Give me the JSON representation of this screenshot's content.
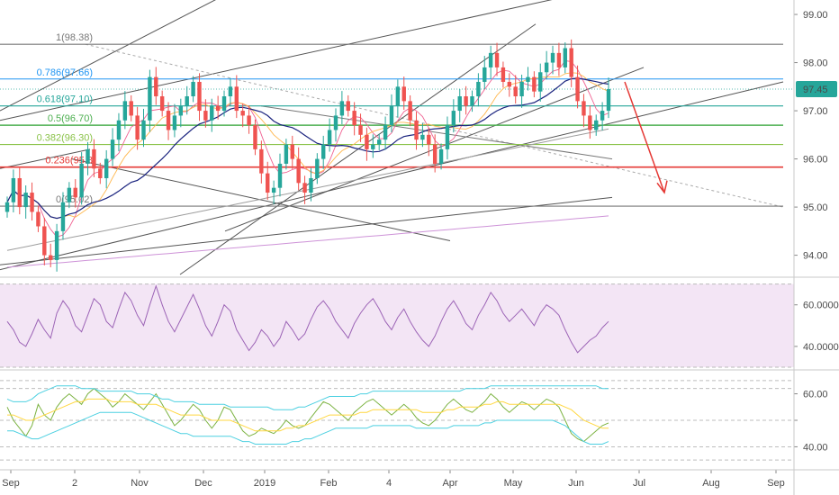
{
  "chart_data": [
    {
      "type": "candlestick",
      "panel": "price",
      "title": "",
      "y_ticks": [
        94.0,
        95.0,
        96.0,
        97.0,
        98.0,
        99.0
      ],
      "y_tick_labels": [
        "94.00",
        "95.00",
        "96.00",
        "97.00",
        "98.00",
        "99.00"
      ],
      "ylim": [
        93.6,
        99.3
      ],
      "x_ticks": [
        "Sep",
        "2",
        "Nov",
        "Dec",
        "2019",
        "Feb",
        "4",
        "Apr",
        "May",
        "Jun",
        "Jul",
        "Aug",
        "Sep"
      ],
      "last_price": 97.45,
      "last_price_label": "97.45",
      "fib_levels": [
        {
          "label": "1(98.38)",
          "ratio": 1,
          "value": 98.38,
          "color": "#787878"
        },
        {
          "label": "0.786(97.66)",
          "ratio": 0.786,
          "value": 97.66,
          "color": "#2196f3"
        },
        {
          "label": "0.618(97.10)",
          "ratio": 0.618,
          "value": 97.1,
          "color": "#26a69a"
        },
        {
          "label": "0.5(96.70)",
          "ratio": 0.5,
          "value": 96.7,
          "color": "#4caf50"
        },
        {
          "label": "0.382(96.30)",
          "ratio": 0.382,
          "value": 96.3,
          "color": "#8bc34a"
        },
        {
          "label": "0.236(95.8",
          "ratio": 0.236,
          "value": 95.83,
          "color": "#e53935"
        },
        {
          "label": "0(95.02)",
          "ratio": 0,
          "value": 95.02,
          "color": "#787878"
        }
      ],
      "ohlc_series_approx": [
        95.1,
        95.6,
        95.0,
        95.3,
        94.9,
        94.6,
        94.0,
        93.9,
        94.5,
        95.1,
        95.4,
        95.2,
        95.9,
        96.2,
        95.8,
        95.6,
        96.0,
        96.4,
        96.8,
        97.2,
        96.9,
        96.4,
        96.8,
        97.7,
        97.3,
        97.0,
        96.6,
        96.9,
        97.1,
        97.3,
        97.6,
        97.0,
        96.8,
        97.1,
        97.0,
        97.3,
        97.5,
        97.0,
        96.9,
        96.7,
        96.2,
        95.7,
        95.3,
        95.4,
        95.9,
        96.3,
        96.0,
        95.5,
        95.3,
        95.6,
        96.0,
        96.3,
        96.6,
        96.9,
        97.2,
        97.0,
        96.7,
        96.5,
        96.2,
        96.3,
        96.4,
        96.7,
        97.1,
        97.5,
        97.2,
        96.8,
        96.4,
        96.5,
        96.3,
        95.9,
        96.2,
        96.7,
        97.0,
        97.3,
        97.1,
        97.3,
        97.6,
        97.9,
        98.2,
        97.9,
        97.6,
        97.5,
        97.3,
        97.6,
        97.7,
        97.4,
        97.8,
        98.0,
        98.2,
        97.9,
        98.3,
        97.7,
        97.2,
        96.9,
        96.6,
        96.8,
        97.0,
        97.45
      ],
      "trend_arrow": "down",
      "trend_arrow_color": "#e53935"
    },
    {
      "type": "line",
      "panel": "RSI",
      "y_ticks": [
        40,
        60
      ],
      "y_tick_labels": [
        "40.0000",
        "60.0000"
      ],
      "ylim": [
        30,
        72
      ],
      "band": [
        30,
        70
      ],
      "series_color": "#9c64b6",
      "values_approx": [
        52,
        48,
        42,
        40,
        46,
        53,
        48,
        44,
        56,
        62,
        58,
        50,
        47,
        55,
        63,
        60,
        52,
        49,
        58,
        66,
        62,
        55,
        50,
        60,
        69,
        60,
        52,
        47,
        53,
        59,
        65,
        58,
        50,
        45,
        52,
        60,
        57,
        48,
        43,
        38,
        42,
        48,
        45,
        40,
        44,
        52,
        48,
        43,
        46,
        53,
        59,
        62,
        58,
        52,
        48,
        44,
        51,
        56,
        60,
        63,
        58,
        52,
        48,
        54,
        58,
        52,
        47,
        43,
        40,
        45,
        52,
        58,
        62,
        57,
        51,
        48,
        55,
        60,
        66,
        62,
        56,
        52,
        55,
        58,
        54,
        50,
        56,
        60,
        58,
        55,
        48,
        42,
        37,
        40,
        43,
        45,
        49,
        52
      ]
    },
    {
      "type": "line",
      "panel": "oscillator",
      "y_ticks": [
        40,
        50,
        60
      ],
      "y_tick_labels": [
        "40.00",
        "",
        "60.00"
      ],
      "ylim": [
        32,
        68
      ],
      "series": [
        {
          "color": "#7cb342",
          "role": "fast",
          "values_approx": [
            55,
            50,
            47,
            44,
            48,
            56,
            52,
            50,
            55,
            58,
            60,
            58,
            56,
            60,
            62,
            60,
            58,
            55,
            57,
            60,
            58,
            56,
            54,
            57,
            60,
            56,
            52,
            48,
            50,
            53,
            56,
            54,
            50,
            47,
            50,
            55,
            54,
            50,
            46,
            44,
            45,
            47,
            46,
            45,
            47,
            50,
            48,
            47,
            48,
            51,
            54,
            57,
            56,
            54,
            52,
            50,
            53,
            55,
            57,
            58,
            56,
            54,
            52,
            54,
            56,
            54,
            51,
            49,
            48,
            50,
            53,
            56,
            58,
            56,
            54,
            53,
            55,
            57,
            60,
            58,
            55,
            53,
            55,
            57,
            56,
            54,
            56,
            58,
            57,
            55,
            50,
            45,
            43,
            42,
            44,
            46,
            48,
            49
          ]
        },
        {
          "color": "#ffd740",
          "role": "mid",
          "values_approx": [
            52,
            52,
            51,
            50,
            50,
            51,
            52,
            53,
            54,
            55,
            56,
            57,
            57,
            58,
            58,
            58,
            58,
            57,
            57,
            57,
            57,
            56,
            56,
            56,
            56,
            55,
            54,
            53,
            52,
            52,
            52,
            52,
            51,
            50,
            50,
            50,
            50,
            49,
            48,
            47,
            46,
            46,
            46,
            46,
            46,
            47,
            47,
            48,
            48,
            49,
            50,
            51,
            52,
            52,
            52,
            52,
            52,
            53,
            53,
            54,
            54,
            54,
            54,
            54,
            54,
            54,
            54,
            53,
            53,
            53,
            53,
            54,
            54,
            55,
            55,
            55,
            55,
            56,
            56,
            57,
            57,
            56,
            56,
            56,
            56,
            56,
            56,
            56,
            56,
            56,
            55,
            54,
            52,
            50,
            49,
            48,
            47,
            47
          ]
        },
        {
          "color": "#4dd0e1",
          "role": "upper_band",
          "values_approx": [
            58,
            57,
            57,
            57,
            58,
            60,
            61,
            62,
            63,
            63,
            63,
            63,
            62,
            62,
            62,
            61,
            61,
            61,
            61,
            61,
            61,
            60,
            60,
            60,
            59,
            58,
            58,
            57,
            57,
            57,
            57,
            56,
            56,
            56,
            56,
            56,
            55,
            55,
            55,
            55,
            55,
            55,
            55,
            54,
            54,
            54,
            54,
            55,
            55,
            56,
            57,
            58,
            59,
            59,
            59,
            59,
            59,
            60,
            60,
            61,
            61,
            61,
            61,
            61,
            61,
            61,
            61,
            61,
            61,
            61,
            61,
            61,
            61,
            61,
            62,
            62,
            62,
            62,
            63,
            63,
            63,
            63,
            63,
            63,
            63,
            63,
            63,
            63,
            63,
            63,
            63,
            63,
            63,
            63,
            63,
            63,
            62,
            62
          ]
        },
        {
          "color": "#4dd0e1",
          "role": "lower_band",
          "values_approx": [
            46,
            46,
            45,
            44,
            43,
            43,
            44,
            45,
            46,
            47,
            48,
            49,
            50,
            51,
            52,
            53,
            53,
            53,
            53,
            53,
            53,
            52,
            51,
            50,
            49,
            48,
            47,
            46,
            45,
            45,
            44,
            44,
            44,
            44,
            44,
            44,
            44,
            43,
            42,
            42,
            41,
            41,
            41,
            41,
            41,
            41,
            42,
            42,
            43,
            43,
            44,
            45,
            46,
            47,
            47,
            47,
            47,
            47,
            47,
            48,
            48,
            48,
            48,
            48,
            48,
            48,
            47,
            47,
            47,
            47,
            47,
            47,
            48,
            48,
            48,
            48,
            48,
            49,
            49,
            50,
            50,
            50,
            50,
            50,
            50,
            50,
            50,
            50,
            50,
            49,
            48,
            46,
            44,
            42,
            41,
            41,
            41,
            42
          ]
        }
      ]
    }
  ]
}
